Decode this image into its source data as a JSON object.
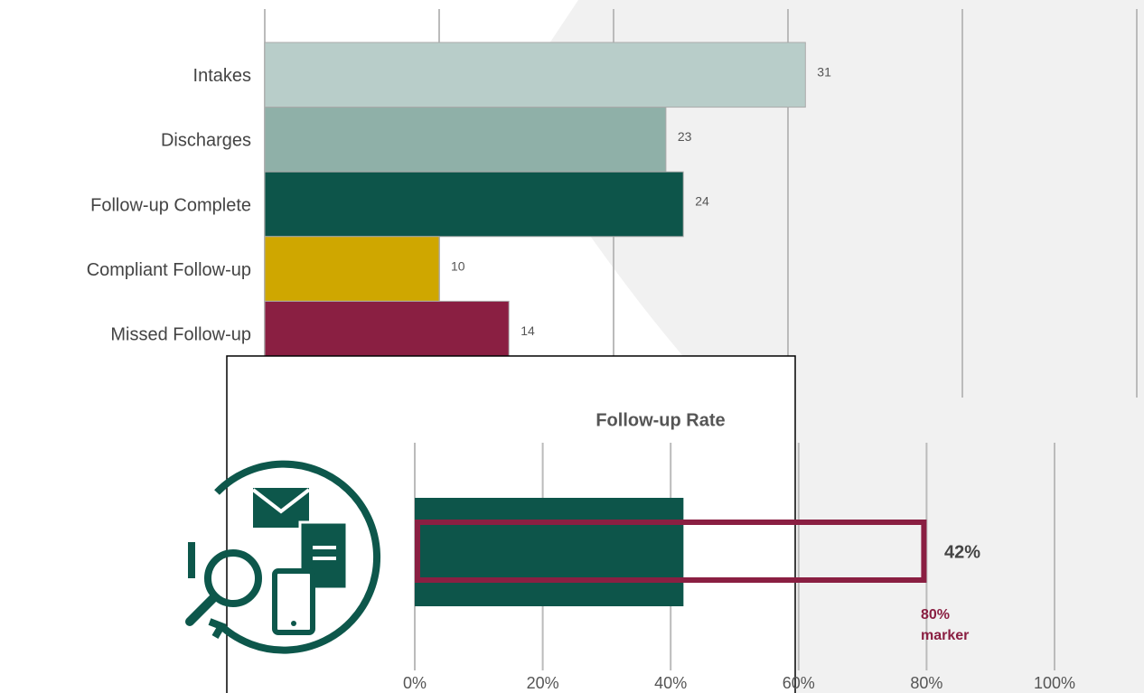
{
  "chart_data": [
    {
      "type": "hbar",
      "categories": [
        "Intakes",
        "Discharges",
        "Follow-up Complete",
        "Compliant Follow-up",
        "Missed Follow-up"
      ],
      "values": [
        31,
        23,
        24,
        10,
        14
      ],
      "colors": [
        "#b8cdc9",
        "#8fb0a8",
        "#0d554a",
        "#cfa700",
        "#8a1f42"
      ],
      "xlim": [
        0,
        50
      ],
      "xticks": [
        0,
        10,
        20,
        30,
        40,
        50
      ],
      "grid": true
    },
    {
      "type": "bullet",
      "title": "Follow-up Rate",
      "values": [
        42
      ],
      "value_labels": [
        "42%"
      ],
      "color": "#0d554a",
      "target": 80,
      "target_color": "#8a1f42",
      "target_label_lines": [
        "80%",
        "marker"
      ],
      "xlim": [
        0,
        100
      ],
      "xticks": [
        {
          "value": 0,
          "label": "0%"
        },
        {
          "value": 20,
          "label": "20%"
        },
        {
          "value": 40,
          "label": "40%"
        },
        {
          "value": 60,
          "label": "60%"
        },
        {
          "value": 80,
          "label": "80%"
        },
        {
          "value": 100,
          "label": "100%"
        }
      ],
      "grid": true
    }
  ]
}
